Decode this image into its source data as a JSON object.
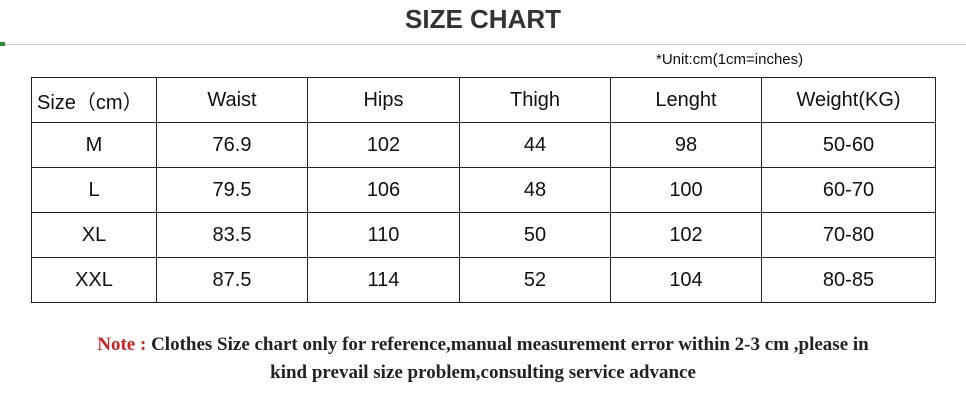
{
  "header": {
    "title": "SIZE CHART",
    "unit": "*Unit:cm(1cm=inches)"
  },
  "table": {
    "columns": [
      "Size（cm）",
      "Waist",
      "Hips",
      "Thigh",
      "Lenght",
      "Weight(KG)"
    ],
    "rows": [
      [
        "M",
        76.9,
        102,
        44,
        98,
        "50-60"
      ],
      [
        "L",
        79.5,
        106,
        48,
        100,
        "60-70"
      ],
      [
        "XL",
        83.5,
        110,
        50,
        102,
        "70-80"
      ],
      [
        "XXL",
        87.5,
        114,
        52,
        104,
        "80-85"
      ]
    ]
  },
  "note": {
    "label": "Note :",
    "lines": [
      "Clothes Size chart only for reference,manual measurement error within 2-3 cm ,please in",
      "kind prevail size problem,consulting service advance"
    ]
  }
}
